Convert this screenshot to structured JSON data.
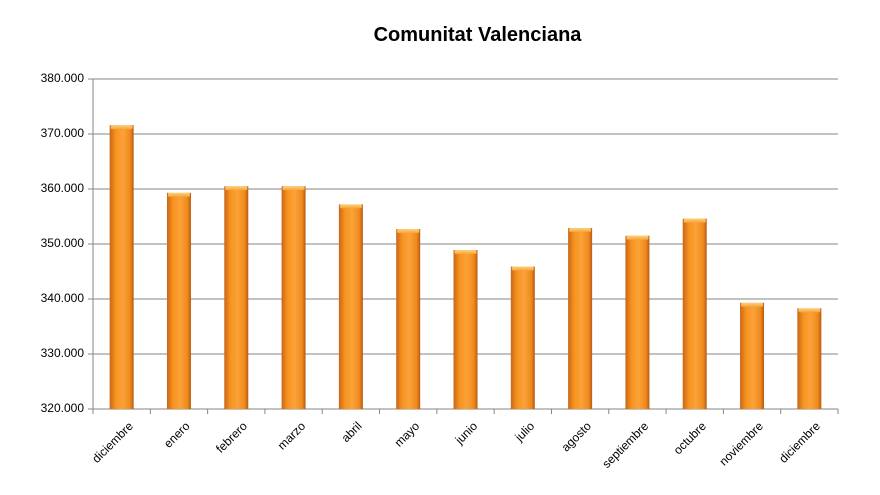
{
  "chart_data": {
    "type": "bar",
    "title": "Comunitat Valenciana",
    "xlabel": "",
    "ylabel": "",
    "categories": [
      "diciembre",
      "enero",
      "febrero",
      "marzo",
      "abril",
      "mayo",
      "junio",
      "julio",
      "agosto",
      "septiembre",
      "octubre",
      "noviembre",
      "diciembre"
    ],
    "values": [
      371600,
      359300,
      360500,
      360500,
      357200,
      352700,
      348900,
      345900,
      352900,
      351500,
      354600,
      339300,
      338300
    ],
    "ylim": [
      320000,
      380000
    ],
    "yticks": [
      320000,
      330000,
      340000,
      350000,
      360000,
      370000,
      380000
    ],
    "ytick_labels": [
      "320.000",
      "330.000",
      "340.000",
      "350.000",
      "360.000",
      "370.000",
      "380.000"
    ],
    "grid": true,
    "legend": null,
    "bar_color": "#F7931E"
  }
}
